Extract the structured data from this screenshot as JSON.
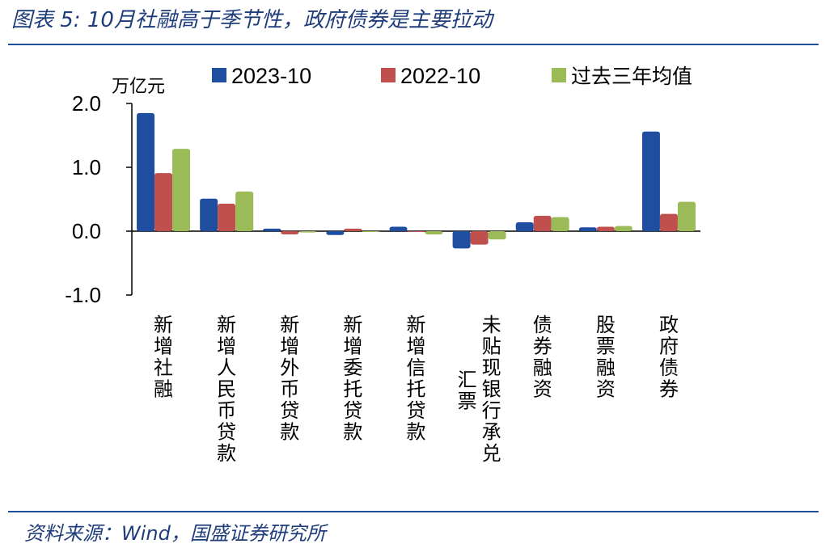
{
  "header": {
    "title": "图表 5:  10月社融高于季节性，政府债券是主要拉动"
  },
  "footer": {
    "source": "资料来源：Wind，国盛证券研究所"
  },
  "chart_data": {
    "type": "bar",
    "unit_label": "万亿元",
    "categories": [
      "新增社融",
      "新增人民币贷款",
      "新增外币贷款",
      "新增委托贷款",
      "新增信托贷款",
      "未贴现银行承兑汇票",
      "债券融资",
      "股票融资",
      "政府债券"
    ],
    "category_lines": [
      [
        "新增社融"
      ],
      [
        "新增人民币贷款"
      ],
      [
        "新增外币贷款"
      ],
      [
        "新增委托贷款"
      ],
      [
        "新增信托贷款"
      ],
      [
        "未贴现银行承兑",
        "汇票"
      ],
      [
        "债券融资"
      ],
      [
        "股票融资"
      ],
      [
        "政府债券"
      ]
    ],
    "series": [
      {
        "name": "2023-10",
        "color": "#1f4ea1",
        "values": [
          1.85,
          0.51,
          0.04,
          -0.06,
          0.07,
          -0.27,
          0.14,
          0.06,
          1.56
        ]
      },
      {
        "name": "2022-10",
        "color": "#c0504d",
        "values": [
          0.91,
          0.43,
          -0.05,
          0.04,
          0.0,
          -0.21,
          0.24,
          0.07,
          0.27
        ]
      },
      {
        "name": "过去三年均值",
        "color": "#9bbb59",
        "values": [
          1.29,
          0.62,
          -0.02,
          0.0,
          -0.05,
          -0.13,
          0.22,
          0.08,
          0.46
        ]
      }
    ],
    "ylim": [
      -1.0,
      2.0
    ],
    "yticks": [
      "2.0",
      "1.0",
      "0.0",
      "-1.0"
    ],
    "ytick_values": [
      2.0,
      1.0,
      0.0,
      -1.0
    ],
    "legend_position": "top",
    "grid": false
  }
}
